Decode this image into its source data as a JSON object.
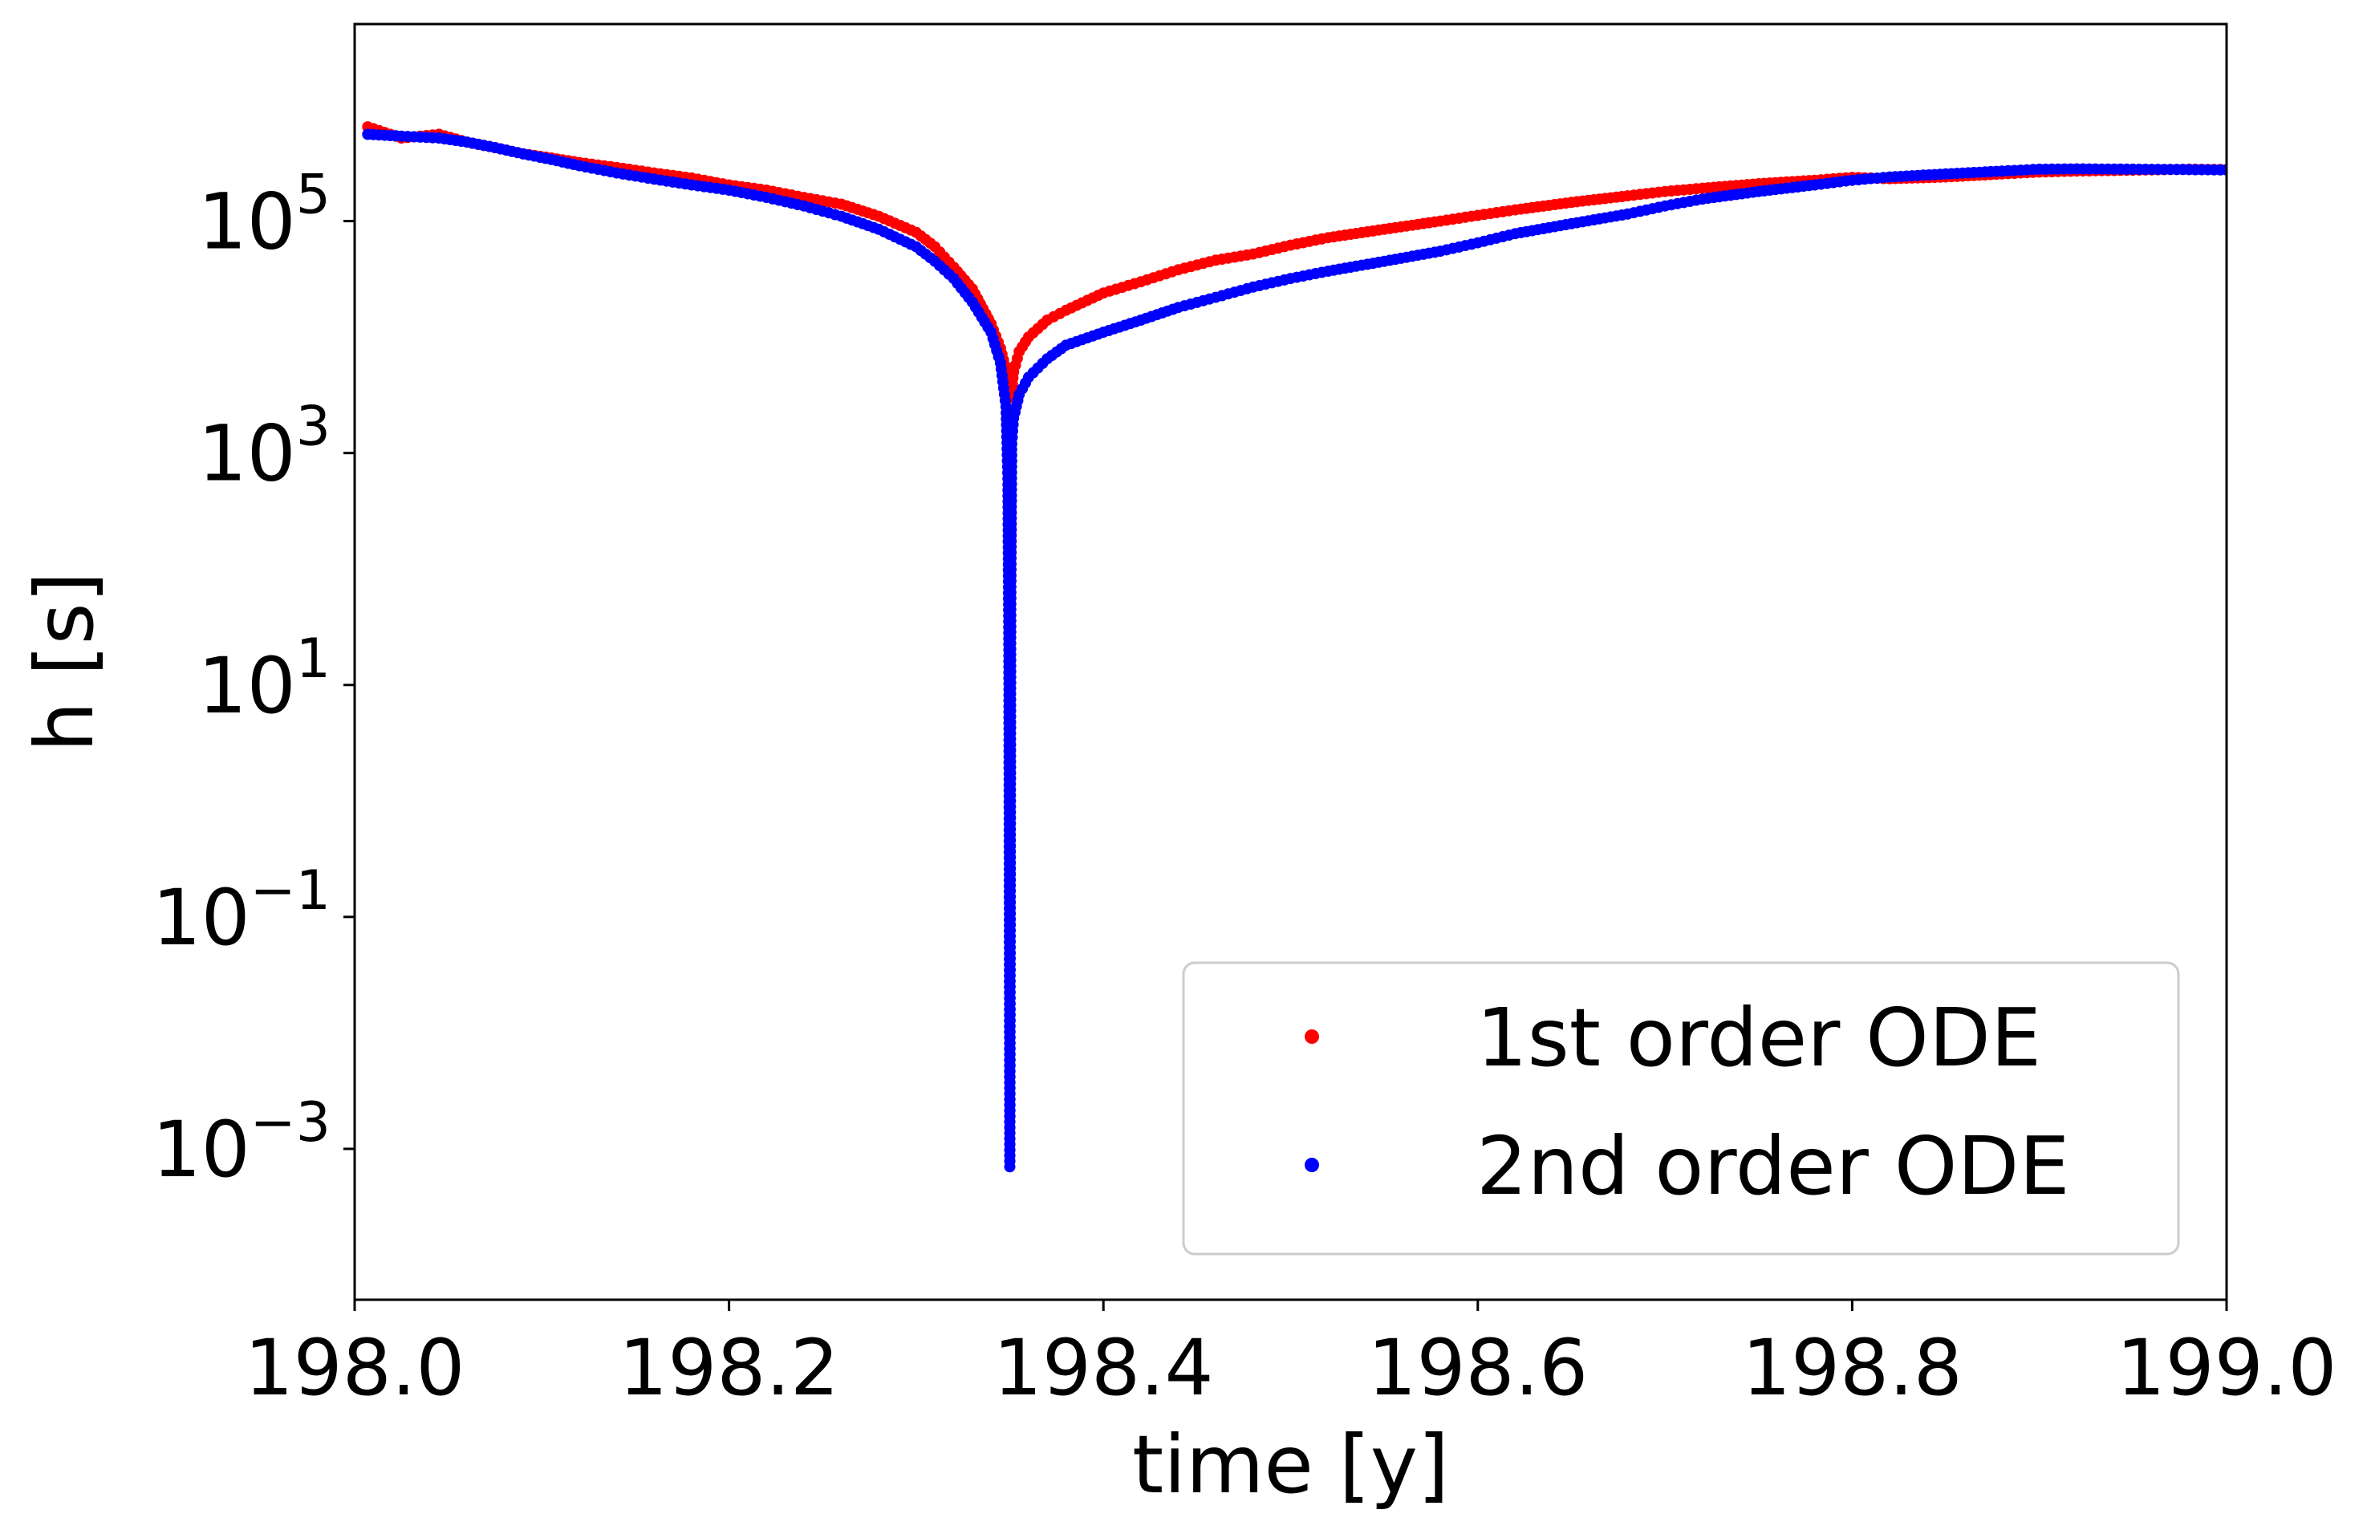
{
  "chart_data": {
    "type": "scatter",
    "title": "",
    "xlabel": "time [y]",
    "ylabel": "h [s]",
    "xlim": [
      198.0,
      199.0
    ],
    "ylim": [
      5e-05,
      5000000
    ],
    "yscale": "log",
    "grid": false,
    "legend_position": "bottom-right",
    "x_ticks": [
      198.0,
      198.2,
      198.4,
      198.6,
      198.8,
      199.0
    ],
    "x_tick_labels": [
      "198.0",
      "198.2",
      "198.4",
      "198.6",
      "198.8",
      "199.0"
    ],
    "y_ticks": [
      0.001,
      0.1,
      10,
      1000,
      100000
    ],
    "y_tick_bases": [
      "10",
      "10",
      "10",
      "10",
      "10"
    ],
    "y_tick_exponents": [
      "−3",
      "−1",
      "1",
      "3",
      "5"
    ],
    "series": [
      {
        "name": "1st order ODE",
        "color": "#ff0000",
        "x": [
          198.007,
          198.025,
          198.045,
          198.06,
          198.075,
          198.09,
          198.105,
          198.12,
          198.14,
          198.16,
          198.18,
          198.2,
          198.22,
          198.24,
          198.26,
          198.28,
          198.3,
          198.31,
          198.32,
          198.33,
          198.34,
          198.345,
          198.349,
          198.35,
          198.351,
          198.352,
          198.355,
          198.36,
          198.37,
          198.38,
          198.4,
          198.42,
          198.44,
          198.46,
          198.48,
          198.5,
          198.52,
          198.55,
          198.58,
          198.6,
          198.62,
          198.65,
          198.68,
          198.7,
          198.72,
          198.75,
          198.78,
          198.8,
          198.82,
          198.85,
          198.88,
          198.9,
          198.92,
          198.95,
          198.98,
          199.0
        ],
        "y": [
          650000,
          520000,
          560000,
          480000,
          430000,
          380000,
          350000,
          320000,
          290000,
          260000,
          235000,
          205000,
          185000,
          160000,
          140000,
          110000,
          80000,
          60000,
          40000,
          26000,
          13000,
          8000,
          4500,
          3000,
          3500,
          5000,
          7500,
          10000,
          14000,
          17000,
          24000,
          30000,
          38000,
          46000,
          52000,
          62000,
          72000,
          85000,
          100000,
          112000,
          125000,
          145000,
          165000,
          180000,
          192000,
          210000,
          225000,
          238000,
          232000,
          240000,
          255000,
          265000,
          270000,
          275000,
          280000,
          278000
        ]
      },
      {
        "name": "2nd order ODE",
        "color": "#0000ff",
        "x": [
          198.007,
          198.025,
          198.045,
          198.06,
          198.075,
          198.09,
          198.105,
          198.12,
          198.14,
          198.16,
          198.18,
          198.2,
          198.22,
          198.24,
          198.26,
          198.28,
          198.3,
          198.31,
          198.32,
          198.33,
          198.34,
          198.345,
          198.348,
          198.349,
          198.3495,
          198.35,
          198.3505,
          198.351,
          198.352,
          198.355,
          198.36,
          198.37,
          198.38,
          198.4,
          198.42,
          198.44,
          198.46,
          198.48,
          198.5,
          198.52,
          198.55,
          198.58,
          198.6,
          198.62,
          198.65,
          198.68,
          198.7,
          198.72,
          198.75,
          198.78,
          198.8,
          198.82,
          198.85,
          198.88,
          198.9,
          198.92,
          198.95,
          198.98,
          199.0
        ],
        "y": [
          560000,
          540000,
          520000,
          480000,
          430000,
          380000,
          340000,
          300000,
          260000,
          230000,
          205000,
          185000,
          160000,
          135000,
          110000,
          85000,
          60000,
          45000,
          32000,
          20000,
          11000,
          6000,
          2500,
          600,
          20,
          0.0007,
          50,
          1200,
          2000,
          3200,
          4500,
          6500,
          8500,
          11000,
          14000,
          18000,
          22000,
          27000,
          32000,
          37000,
          45000,
          55000,
          65000,
          78000,
          95000,
          115000,
          135000,
          155000,
          180000,
          205000,
          225000,
          240000,
          255000,
          270000,
          280000,
          282000,
          280000,
          278000,
          276000
        ]
      }
    ]
  }
}
